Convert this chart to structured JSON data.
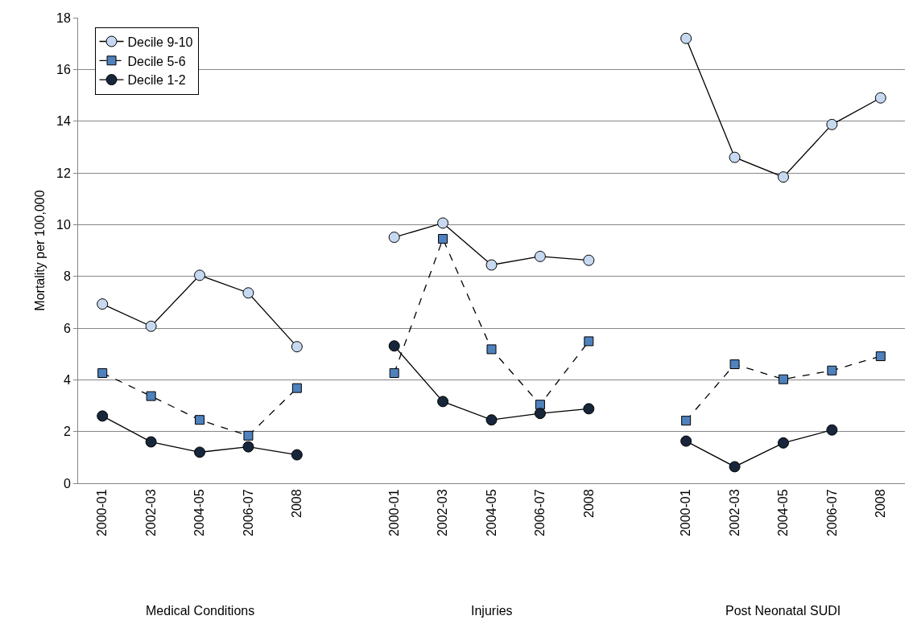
{
  "chart_data": {
    "type": "line",
    "ylabel": "Mortality per 100,000",
    "categories": [
      "2000-01",
      "2002-03",
      "2004-05",
      "2006-07",
      "2008",
      null,
      "2000-01",
      "2002-03",
      "2004-05",
      "2006-07",
      "2008",
      null,
      "2000-01",
      "2002-03",
      "2004-05",
      "2006-07",
      "2008"
    ],
    "annotations": [
      "Medical Conditions",
      "Injuries",
      "Post Neonatal SUDI"
    ],
    "series": [
      {
        "name": "Decile 9-10",
        "color": "#c6d9f1",
        "marker": "circle",
        "line_style": "solid",
        "values": [
          6.93,
          6.07,
          8.04,
          7.36,
          5.28,
          null,
          9.51,
          10.06,
          8.44,
          8.77,
          8.62,
          null,
          17.2,
          12.6,
          11.84,
          13.87,
          14.9
        ]
      },
      {
        "name": "Decile 5-6",
        "color": "#4f81bd",
        "marker": "square",
        "line_style": "dashed",
        "values": [
          4.26,
          3.37,
          2.45,
          1.84,
          3.68,
          null,
          4.26,
          9.45,
          5.18,
          3.04,
          5.49,
          null,
          2.42,
          4.6,
          4.02,
          4.36,
          4.91
        ]
      },
      {
        "name": "Decile 1-2",
        "color": "#17263a",
        "marker": "circle",
        "line_style": "solid",
        "values": [
          2.6,
          1.6,
          1.2,
          1.41,
          1.1,
          null,
          5.31,
          3.16,
          2.45,
          2.7,
          2.88,
          null,
          1.63,
          0.64,
          1.56,
          2.06,
          null
        ]
      }
    ],
    "ylim": [
      0,
      18
    ],
    "yticks": [
      0,
      2,
      4,
      6,
      8,
      10,
      12,
      14,
      16,
      18
    ],
    "grid": "y",
    "legend": "top left"
  }
}
